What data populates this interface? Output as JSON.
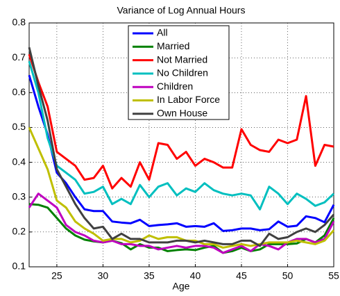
{
  "chart_data": {
    "type": "line",
    "title": "Variance of Log Annual Hours",
    "x_label": "Age",
    "x": [
      22,
      23,
      24,
      25,
      26,
      27,
      28,
      29,
      30,
      31,
      32,
      33,
      34,
      35,
      36,
      37,
      38,
      39,
      40,
      41,
      42,
      43,
      44,
      45,
      46,
      47,
      48,
      49,
      50,
      51,
      52,
      53,
      54,
      55
    ],
    "xlim": [
      22,
      55
    ],
    "xticks": [
      25,
      30,
      35,
      40,
      45,
      50,
      55
    ],
    "ylim": [
      0.1,
      0.8
    ],
    "yticks": [
      0.1,
      0.2,
      0.3,
      0.4,
      0.5,
      0.6,
      0.7,
      0.8
    ],
    "grid": true,
    "legend_position": "top",
    "series": [
      {
        "name": "All",
        "color": "#0000ff",
        "values": [
          0.65,
          0.56,
          0.48,
          0.37,
          0.34,
          0.3,
          0.265,
          0.26,
          0.26,
          0.23,
          0.227,
          0.225,
          0.235,
          0.217,
          0.22,
          0.222,
          0.225,
          0.215,
          0.217,
          0.215,
          0.225,
          0.203,
          0.205,
          0.21,
          0.21,
          0.205,
          0.208,
          0.23,
          0.215,
          0.218,
          0.245,
          0.24,
          0.228,
          0.278
        ]
      },
      {
        "name": "Married",
        "color": "#008000",
        "values": [
          0.28,
          0.278,
          0.27,
          0.24,
          0.21,
          0.19,
          0.178,
          0.173,
          0.17,
          0.175,
          0.168,
          0.15,
          0.165,
          0.155,
          0.155,
          0.145,
          0.148,
          0.15,
          0.148,
          0.155,
          0.16,
          0.14,
          0.145,
          0.155,
          0.145,
          0.15,
          0.165,
          0.165,
          0.165,
          0.167,
          0.18,
          0.17,
          0.19,
          0.24
        ]
      },
      {
        "name": "Not Married",
        "color": "#ff0000",
        "values": [
          0.71,
          0.63,
          0.56,
          0.43,
          0.41,
          0.39,
          0.35,
          0.355,
          0.39,
          0.325,
          0.355,
          0.33,
          0.4,
          0.35,
          0.455,
          0.45,
          0.41,
          0.43,
          0.39,
          0.41,
          0.4,
          0.385,
          0.385,
          0.495,
          0.45,
          0.435,
          0.43,
          0.465,
          0.455,
          0.465,
          0.59,
          0.39,
          0.45,
          0.445
        ]
      },
      {
        "name": "No Children",
        "color": "#00bfbf",
        "values": [
          0.69,
          0.6,
          0.47,
          0.39,
          0.37,
          0.35,
          0.31,
          0.315,
          0.33,
          0.28,
          0.295,
          0.28,
          0.335,
          0.3,
          0.33,
          0.34,
          0.305,
          0.325,
          0.315,
          0.34,
          0.32,
          0.31,
          0.305,
          0.31,
          0.305,
          0.265,
          0.33,
          0.31,
          0.28,
          0.31,
          0.295,
          0.275,
          0.285,
          0.31
        ]
      },
      {
        "name": "Children",
        "color": "#bf00bf",
        "values": [
          0.27,
          0.31,
          0.29,
          0.27,
          0.22,
          0.2,
          0.19,
          0.175,
          0.17,
          0.175,
          0.165,
          0.165,
          0.16,
          0.16,
          0.15,
          0.155,
          0.16,
          0.155,
          0.16,
          0.16,
          0.155,
          0.14,
          0.15,
          0.16,
          0.145,
          0.165,
          0.16,
          0.15,
          0.17,
          0.18,
          0.18,
          0.17,
          0.18,
          0.23
        ]
      },
      {
        "name": "In Labor Force",
        "color": "#bfbf00",
        "values": [
          0.5,
          0.44,
          0.38,
          0.29,
          0.27,
          0.23,
          0.21,
          0.195,
          0.175,
          0.18,
          0.18,
          0.17,
          0.175,
          0.19,
          0.18,
          0.185,
          0.185,
          0.175,
          0.175,
          0.165,
          0.165,
          0.155,
          0.16,
          0.165,
          0.16,
          0.165,
          0.17,
          0.17,
          0.17,
          0.175,
          0.17,
          0.165,
          0.175,
          0.205
        ]
      },
      {
        "name": "Own House",
        "color": "#404040",
        "values": [
          0.73,
          0.62,
          0.52,
          0.38,
          0.33,
          0.28,
          0.24,
          0.21,
          0.215,
          0.18,
          0.195,
          0.18,
          0.18,
          0.17,
          0.17,
          0.17,
          0.175,
          0.175,
          0.17,
          0.175,
          0.17,
          0.165,
          0.165,
          0.175,
          0.175,
          0.16,
          0.195,
          0.18,
          0.185,
          0.2,
          0.21,
          0.2,
          0.22,
          0.25
        ]
      }
    ]
  }
}
